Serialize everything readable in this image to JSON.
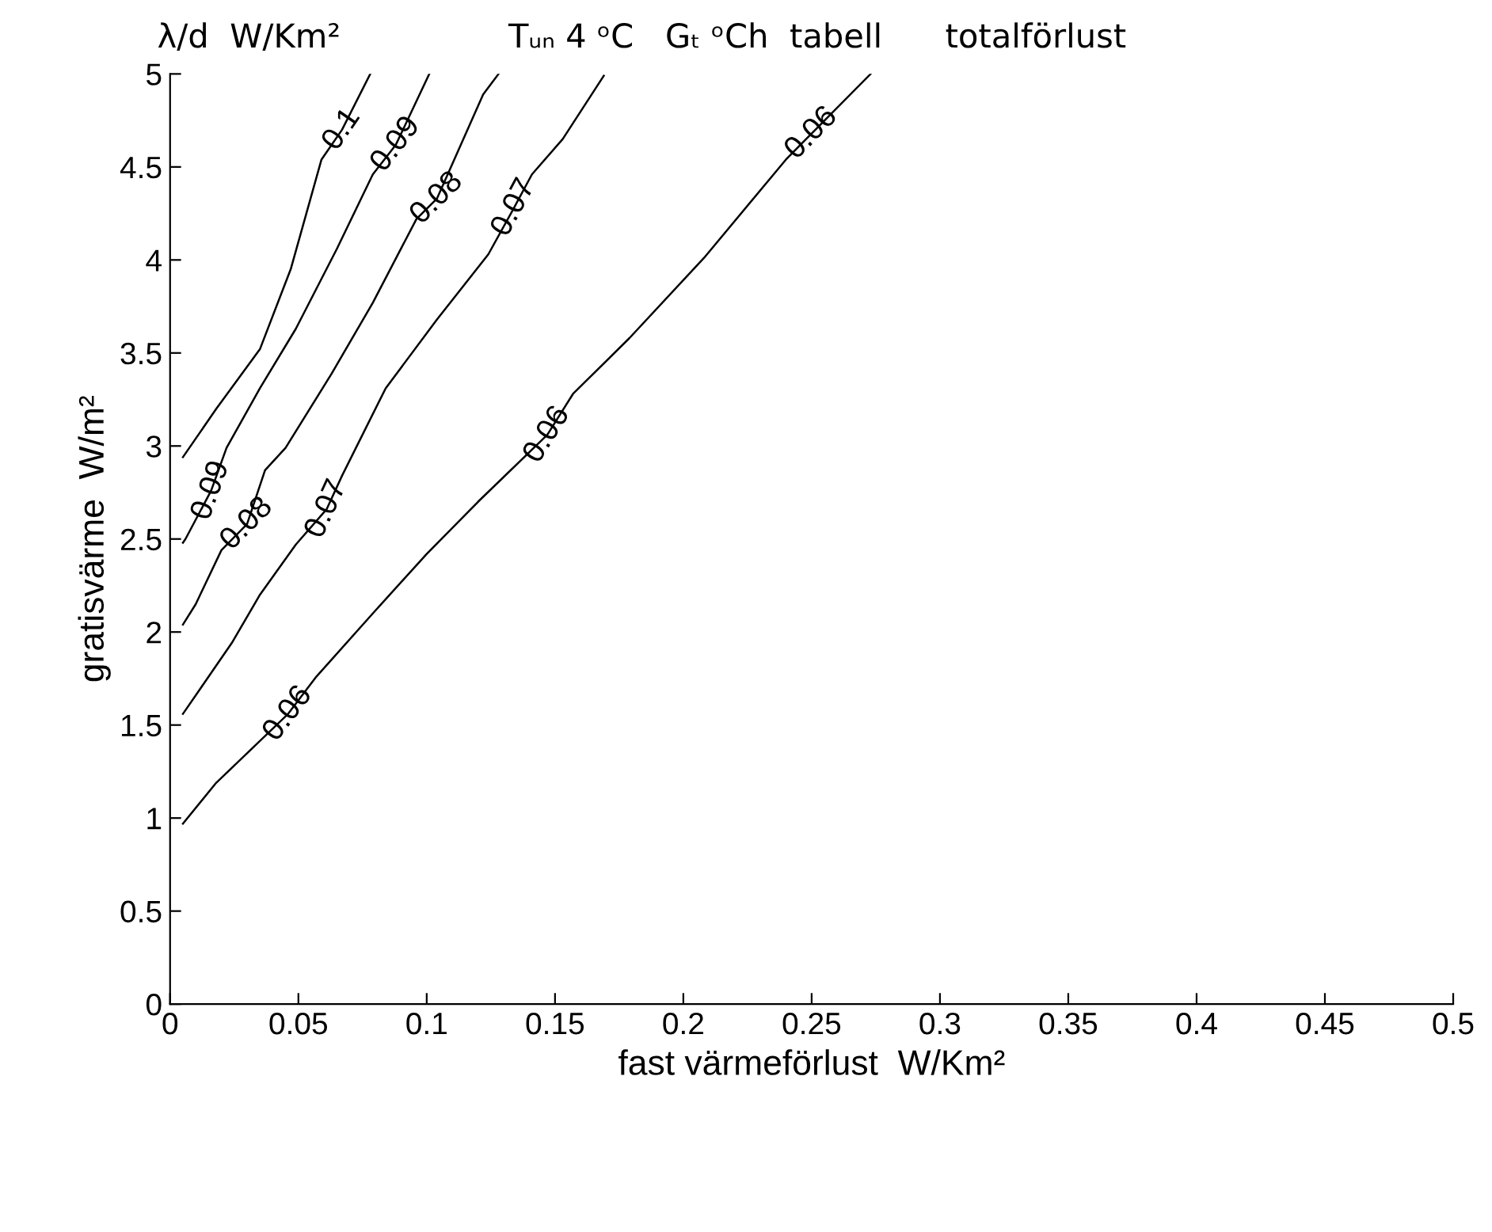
{
  "chart_data": {
    "type": "line",
    "title": "λ/d  W/Km²                Tᵤₙ 4 ᵒC   Gₜ ᵒCh  tabell      totalförlust",
    "xlabel": "fast värmeförlust  W/Km²",
    "ylabel": "gratisvärme  W/m²",
    "xlim": [
      0,
      0.5
    ],
    "xticks": [
      0,
      0.05,
      0.1,
      0.15,
      0.2,
      0.25,
      0.3,
      0.35,
      0.4,
      0.45,
      0.5
    ],
    "ylim": [
      0,
      5
    ],
    "yticks": [
      0,
      0.5,
      1,
      1.5,
      2,
      2.5,
      3,
      3.5,
      4,
      4.5,
      5
    ],
    "grid": false,
    "series": [
      {
        "color": "#000000",
        "x": [
          0.005,
          0.018,
          0.035,
          0.047,
          0.059,
          0.067,
          0.078
        ],
        "values": [
          2.94,
          3.2,
          3.52,
          3.95,
          4.54,
          4.7,
          5.0
        ]
      },
      {
        "color": "#000000",
        "x": [
          0.005,
          0.006,
          0.016,
          0.022,
          0.035,
          0.049,
          0.065,
          0.079,
          0.088,
          0.101
        ],
        "values": [
          2.48,
          2.5,
          2.76,
          2.99,
          3.31,
          3.63,
          4.06,
          4.46,
          4.62,
          5.0
        ]
      },
      {
        "color": "#000000",
        "x": [
          0.005,
          0.01,
          0.02,
          0.03,
          0.037,
          0.045,
          0.063,
          0.079,
          0.096,
          0.104,
          0.122,
          0.128
        ],
        "values": [
          2.04,
          2.15,
          2.44,
          2.58,
          2.87,
          2.99,
          3.39,
          3.77,
          4.22,
          4.33,
          4.89,
          5.0
        ]
      },
      {
        "color": "#000000",
        "x": [
          0.005,
          0.012,
          0.024,
          0.035,
          0.049,
          0.061,
          0.067,
          0.084,
          0.104,
          0.124,
          0.134,
          0.141,
          0.153,
          0.169
        ],
        "values": [
          1.56,
          1.7,
          1.94,
          2.2,
          2.47,
          2.66,
          2.84,
          3.31,
          3.68,
          4.03,
          4.28,
          4.46,
          4.65,
          4.99
        ]
      },
      {
        "color": "#000000",
        "x": [
          0.005,
          0.018,
          0.046,
          0.057,
          0.079,
          0.1,
          0.12,
          0.147,
          0.157,
          0.179,
          0.208,
          0.24,
          0.25,
          0.273
        ],
        "values": [
          0.97,
          1.19,
          1.56,
          1.76,
          2.1,
          2.42,
          2.7,
          3.06,
          3.28,
          3.58,
          4.01,
          4.54,
          4.68,
          5.0
        ]
      }
    ],
    "annotations": [
      {
        "text": "0.1",
        "x": 0.067,
        "y": 4.7
      },
      {
        "text": "0.09",
        "x": 0.088,
        "y": 4.62
      },
      {
        "text": "0.09",
        "x": 0.016,
        "y": 2.76
      },
      {
        "text": "0.08",
        "x": 0.104,
        "y": 4.33
      },
      {
        "text": "0.08",
        "x": 0.03,
        "y": 2.58
      },
      {
        "text": "0.07",
        "x": 0.134,
        "y": 4.28
      },
      {
        "text": "0.07",
        "x": 0.061,
        "y": 2.66
      },
      {
        "text": "0.06",
        "x": 0.046,
        "y": 1.56
      },
      {
        "text": "0.06",
        "x": 0.147,
        "y": 3.06
      },
      {
        "text": "0.06",
        "x": 0.25,
        "y": 4.68
      }
    ]
  }
}
